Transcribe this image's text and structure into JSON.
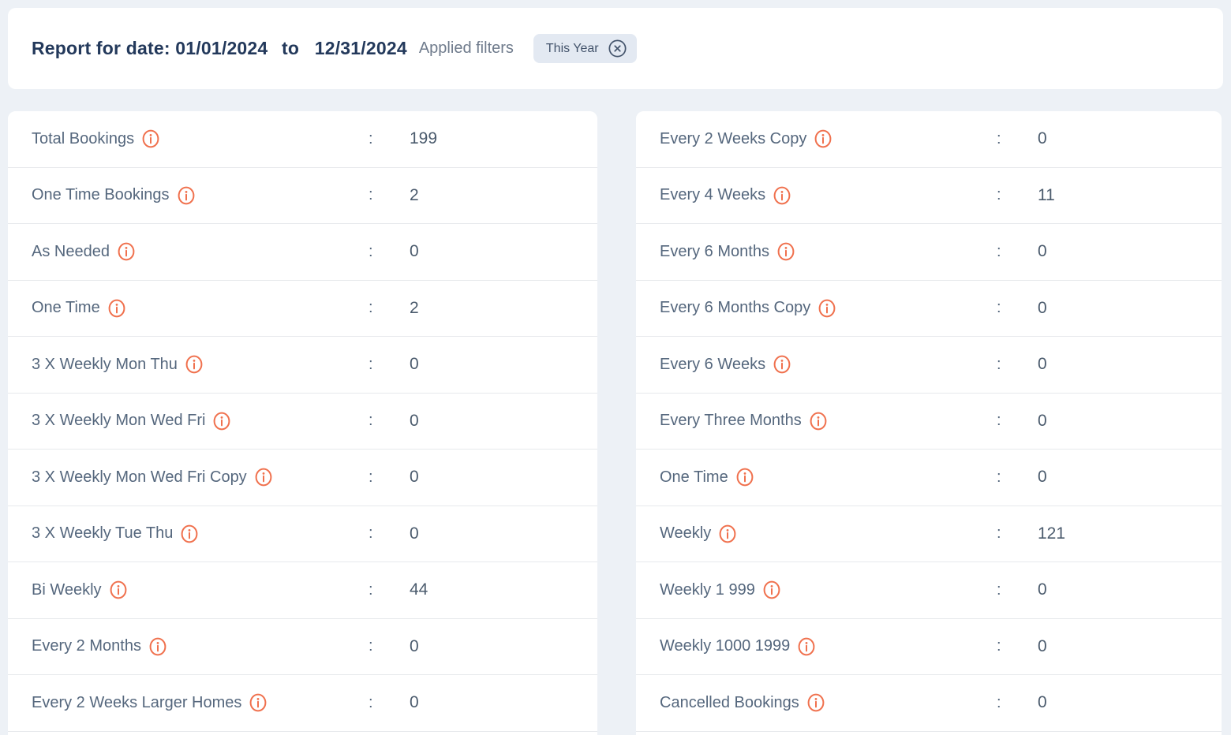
{
  "colors": {
    "page_background": "#edf1f6",
    "card_background": "#ffffff",
    "title_navy": "#23395b",
    "label_slate": "#55677d",
    "value_slate": "#4b5b6d",
    "muted_gray": "#6f7b8c",
    "chip_background": "#e3e9f2",
    "chip_text": "#43536b",
    "accent_orange": "#f0714e",
    "separator": "#e7e9ec"
  },
  "header": {
    "title_prefix": "Report for date:",
    "date_from": "01/01/2024",
    "date_separator": "to",
    "date_to": "12/31/2024",
    "applied_filters_label": "Applied filters",
    "filter_chip": {
      "label": "This Year",
      "remove_icon": "circle-x-icon"
    }
  },
  "stats": {
    "colon": ":",
    "info_icon": "info-circle-icon",
    "left_column": [
      {
        "label": "Total Bookings",
        "value": "199"
      },
      {
        "label": "One Time Bookings",
        "value": "2"
      },
      {
        "label": "As Needed",
        "value": "0"
      },
      {
        "label": "One Time",
        "value": "2"
      },
      {
        "label": "3 X Weekly Mon Thu",
        "value": "0"
      },
      {
        "label": "3 X Weekly Mon Wed Fri",
        "value": "0"
      },
      {
        "label": "3 X Weekly Mon Wed Fri Copy",
        "value": "0"
      },
      {
        "label": "3 X Weekly Tue Thu",
        "value": "0"
      },
      {
        "label": "Bi Weekly",
        "value": "44"
      },
      {
        "label": "Every 2 Months",
        "value": "0"
      },
      {
        "label": "Every 2 Weeks Larger Homes",
        "value": "0"
      }
    ],
    "right_column": [
      {
        "label": "Every 2 Weeks Copy",
        "value": "0"
      },
      {
        "label": "Every 4 Weeks",
        "value": "11"
      },
      {
        "label": "Every 6 Months",
        "value": "0"
      },
      {
        "label": "Every 6 Months Copy",
        "value": "0"
      },
      {
        "label": "Every 6 Weeks",
        "value": "0"
      },
      {
        "label": "Every Three Months",
        "value": "0"
      },
      {
        "label": "One Time",
        "value": "0"
      },
      {
        "label": "Weekly",
        "value": "121"
      },
      {
        "label": "Weekly 1 999",
        "value": "0"
      },
      {
        "label": "Weekly 1000 1999",
        "value": "0"
      },
      {
        "label": "Cancelled Bookings",
        "value": "0"
      }
    ]
  }
}
